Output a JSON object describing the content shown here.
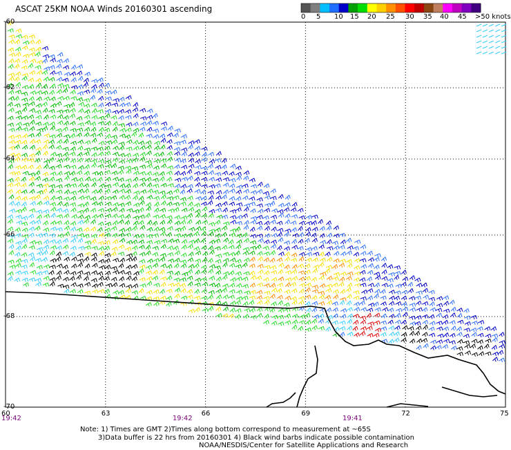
{
  "title": "ASCAT 25KM NOAA Winds 20160301 ascending",
  "colorbar": {
    "segments": [
      "#555555",
      "#7f7f7f",
      "#00bfff",
      "#1e6fff",
      "#0000c8",
      "#00a000",
      "#00dd00",
      "#ffff00",
      "#ffd000",
      "#ff9000",
      "#ff5000",
      "#ff0000",
      "#c00000",
      "#8b4513",
      "#c08060",
      "#ff00ff",
      "#c000c0",
      "#8000c0",
      "#400080"
    ],
    "labels": [
      "0",
      "5",
      "10",
      "15",
      "20",
      "25",
      "30",
      "35",
      "40",
      "45",
      ">50 knots"
    ]
  },
  "axes": {
    "lat_labels": [
      "-60",
      "-62",
      "-64",
      "-66",
      "-68",
      "-70"
    ],
    "lon_labels": [
      "60",
      "63",
      "66",
      "69",
      "72",
      "75"
    ],
    "lon_values": [
      60,
      63,
      66,
      69,
      72,
      75
    ],
    "lat_values": [
      -60,
      -62,
      -64,
      -66,
      -68,
      -70
    ],
    "time_labels": [
      "19:42",
      "19:42",
      "19:41"
    ],
    "time_lons": [
      60,
      65.3,
      70.4
    ]
  },
  "notes": [
    "Note: 1) Times are GMT 2)Times along bottom correspond to measurement at ~65S",
    "3)Data buffer is 22 hrs from 20160301 4) Black wind barbs indicate possible contamination",
    "NOAA/NESDIS/Center for Satellite Applications and Research"
  ],
  "wind_colors": {
    "lt_blue": "#33ccff",
    "blue": "#2a6fff",
    "dk_blue": "#0000c8",
    "green": "#00bb00",
    "lt_green": "#22dd22",
    "yellow": "#f5e000",
    "orange": "#ff8c00",
    "red": "#e00000",
    "black": "#000000"
  },
  "coastline_color": "#000000",
  "grid_color": "#000000"
}
